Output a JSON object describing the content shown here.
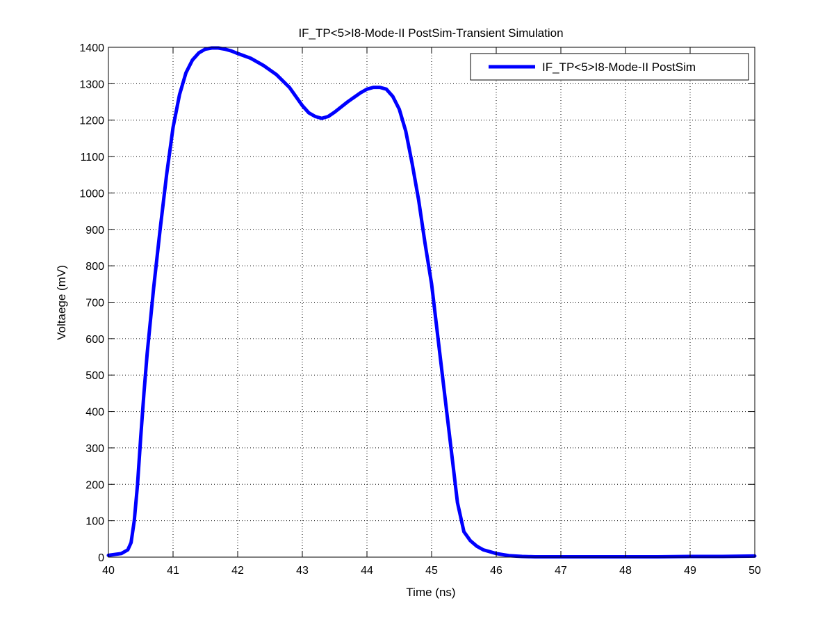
{
  "chart_data": {
    "type": "line",
    "title": "IF_TP<5>I8-Mode-II PostSim-Transient Simulation",
    "xlabel": "Time (ns)",
    "ylabel": "Voltaege (mV)",
    "xlim": [
      40,
      50
    ],
    "ylim": [
      0,
      1400
    ],
    "xticks": [
      40,
      41,
      42,
      43,
      44,
      45,
      46,
      47,
      48,
      49,
      50
    ],
    "yticks": [
      0,
      100,
      200,
      300,
      400,
      500,
      600,
      700,
      800,
      900,
      1000,
      1100,
      1200,
      1300,
      1400
    ],
    "grid": true,
    "legend_position": "top-right",
    "colors": {
      "series": "#0000ff",
      "axes": "#000000",
      "grid": "#000000",
      "background": "#ffffff"
    },
    "series": [
      {
        "name": "IF_TP<5>I8-Mode-II PostSim",
        "x": [
          40.0,
          40.2,
          40.3,
          40.35,
          40.4,
          40.45,
          40.5,
          40.55,
          40.6,
          40.7,
          40.8,
          40.9,
          41.0,
          41.1,
          41.2,
          41.3,
          41.4,
          41.5,
          41.6,
          41.7,
          41.8,
          41.9,
          42.0,
          42.2,
          42.4,
          42.6,
          42.8,
          43.0,
          43.1,
          43.2,
          43.3,
          43.4,
          43.5,
          43.7,
          43.9,
          44.0,
          44.1,
          44.2,
          44.3,
          44.4,
          44.5,
          44.6,
          44.7,
          44.8,
          44.9,
          45.0,
          45.1,
          45.2,
          45.3,
          45.4,
          45.5,
          45.6,
          45.7,
          45.8,
          46.0,
          46.2,
          46.4,
          46.6,
          47.0,
          47.5,
          48.0,
          48.5,
          49.0,
          49.5,
          50.0
        ],
        "y": [
          5,
          10,
          20,
          40,
          100,
          200,
          330,
          450,
          560,
          740,
          900,
          1050,
          1180,
          1270,
          1330,
          1365,
          1385,
          1395,
          1398,
          1398,
          1395,
          1390,
          1383,
          1370,
          1350,
          1325,
          1290,
          1240,
          1220,
          1210,
          1205,
          1210,
          1222,
          1250,
          1275,
          1285,
          1290,
          1290,
          1285,
          1265,
          1230,
          1170,
          1080,
          980,
          860,
          750,
          600,
          450,
          300,
          150,
          70,
          45,
          30,
          20,
          10,
          4,
          2,
          1,
          1,
          1,
          1,
          1,
          2,
          2,
          3
        ]
      }
    ]
  }
}
